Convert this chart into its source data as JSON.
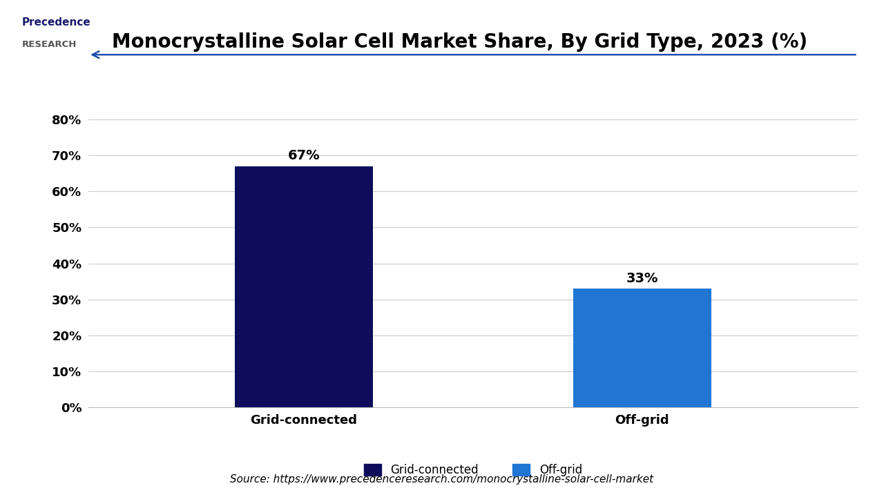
{
  "title": "Monocrystalline Solar Cell Market Share, By Grid Type, 2023 (%)",
  "categories": [
    "Grid-connected",
    "Off-grid"
  ],
  "values": [
    67,
    33
  ],
  "bar_colors": [
    "#0d0d5c",
    "#2176d4"
  ],
  "bar_width": 0.18,
  "ylim": [
    0,
    80
  ],
  "yticks": [
    0,
    10,
    20,
    30,
    40,
    50,
    60,
    70,
    80
  ],
  "ytick_labels": [
    "0%",
    "10%",
    "20%",
    "30%",
    "40%",
    "50%",
    "60%",
    "70%",
    "80%"
  ],
  "value_labels": [
    "67%",
    "33%"
  ],
  "legend_labels": [
    "Grid-connected",
    "Off-grid"
  ],
  "source_text": "Source: https://www.precedenceresearch.com/monocrystalline-solar-cell-market",
  "background_color": "#ffffff",
  "grid_color": "#cccccc",
  "title_fontsize": 20,
  "tick_fontsize": 13,
  "label_fontsize": 13,
  "value_fontsize": 14,
  "legend_fontsize": 12,
  "source_fontsize": 11,
  "x_positions": [
    0.28,
    0.72
  ],
  "xlim": [
    0.0,
    1.0
  ]
}
